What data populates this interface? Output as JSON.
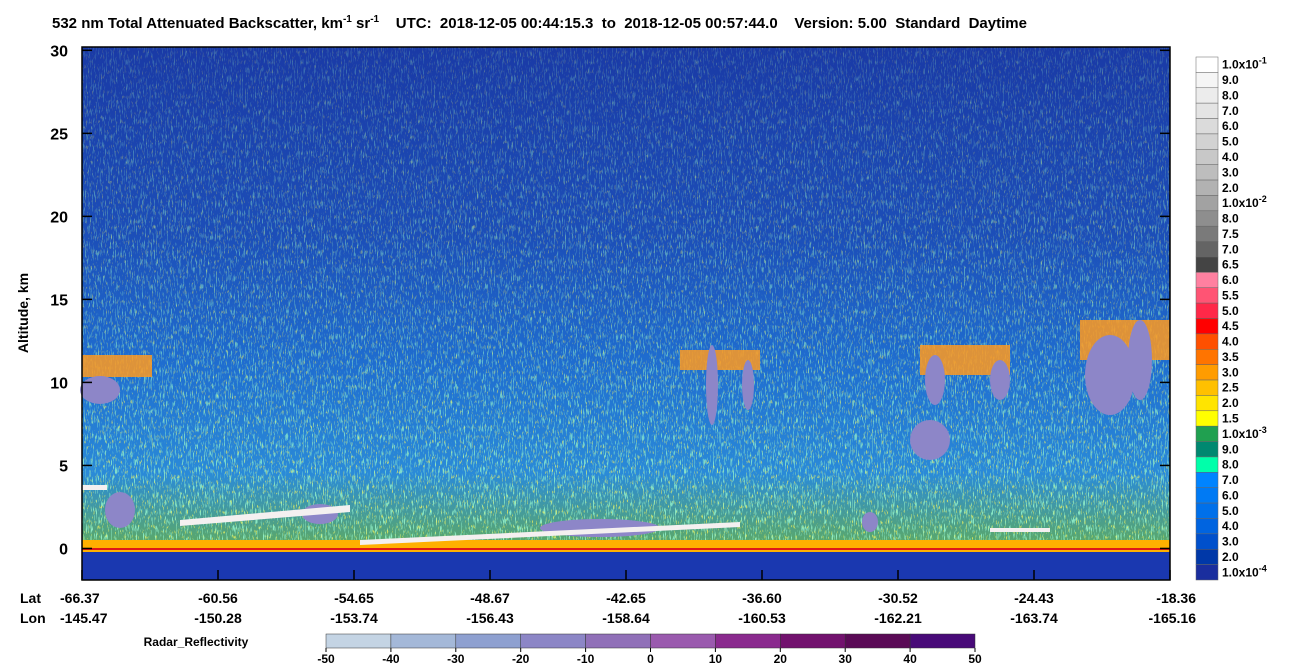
{
  "chart_data": {
    "type": "curtain",
    "title_parts": [
      "532 nm Total Attenuated Backscatter, km",
      "-1",
      " sr",
      "-1",
      "    UTC:  2018-12-05 00:44:15.3  to  2018-12-05 00:57:44.0    Version: 5.00  Standard  Daytime"
    ],
    "ylabel": "Altitude, km",
    "ylim": [
      -1.9,
      30.2
    ],
    "yticks": [
      0,
      5,
      10,
      15,
      20,
      25,
      30
    ],
    "x_row_labels": [
      "Lat",
      "Lon"
    ],
    "lat": [
      "-66.37",
      "-60.56",
      "-54.65",
      "-48.67",
      "-42.65",
      "-36.60",
      "-30.52",
      "-24.43",
      "-18.36"
    ],
    "lon": [
      "-145.47",
      "-150.28",
      "-153.74",
      "-156.43",
      "-158.64",
      "-160.53",
      "-162.21",
      "-163.74",
      "-165.16"
    ],
    "colorbar": [
      {
        "value": 0.1,
        "label": "1.0x10",
        "sup": "-1",
        "color": "#ffffff"
      },
      {
        "value": 0.09,
        "label": "9.0",
        "color": "#f5f5f5"
      },
      {
        "value": 0.08,
        "label": "8.0",
        "color": "#ececec"
      },
      {
        "value": 0.07,
        "label": "7.0",
        "color": "#e4e4e4"
      },
      {
        "value": 0.06,
        "label": "6.0",
        "color": "#dbdbdb"
      },
      {
        "value": 0.05,
        "label": "5.0",
        "color": "#d2d2d2"
      },
      {
        "value": 0.04,
        "label": "4.0",
        "color": "#c8c8c8"
      },
      {
        "value": 0.03,
        "label": "3.0",
        "color": "#bdbdbd"
      },
      {
        "value": 0.02,
        "label": "2.0",
        "color": "#b2b2b2"
      },
      {
        "value": 0.01,
        "label": "1.0x10",
        "sup": "-2",
        "color": "#a2a2a2"
      },
      {
        "value": 0.008,
        "label": "8.0",
        "color": "#8e8e8e"
      },
      {
        "value": 0.0075,
        "label": "7.5",
        "color": "#7a7a7a"
      },
      {
        "value": 0.007,
        "label": "7.0",
        "color": "#646464"
      },
      {
        "value": 0.0065,
        "label": "6.5",
        "color": "#444444"
      },
      {
        "value": 0.006,
        "label": "6.0",
        "color": "#ff80a0"
      },
      {
        "value": 0.0055,
        "label": "5.5",
        "color": "#ff5474"
      },
      {
        "value": 0.005,
        "label": "5.0",
        "color": "#ff2848"
      },
      {
        "value": 0.0045,
        "label": "4.5",
        "color": "#ff0000"
      },
      {
        "value": 0.004,
        "label": "4.0",
        "color": "#ff5000"
      },
      {
        "value": 0.0035,
        "label": "3.5",
        "color": "#ff7400"
      },
      {
        "value": 0.003,
        "label": "3.0",
        "color": "#ff9c00"
      },
      {
        "value": 0.0025,
        "label": "2.5",
        "color": "#ffc000"
      },
      {
        "value": 0.002,
        "label": "2.0",
        "color": "#ffe400"
      },
      {
        "value": 0.0015,
        "label": "1.5",
        "color": "#ffff00"
      },
      {
        "value": 0.001,
        "label": "1.0x10",
        "sup": "-3",
        "color": "#20a050"
      },
      {
        "value": 0.0009,
        "label": "9.0",
        "color": "#008870"
      },
      {
        "value": 0.0008,
        "label": "8.0",
        "color": "#00ffaa"
      },
      {
        "value": 0.0007,
        "label": "7.0",
        "color": "#0084ff"
      },
      {
        "value": 0.0006,
        "label": "6.0",
        "color": "#007af4"
      },
      {
        "value": 0.0005,
        "label": "5.0",
        "color": "#0070ea"
      },
      {
        "value": 0.0004,
        "label": "4.0",
        "color": "#0064e0"
      },
      {
        "value": 0.0003,
        "label": "3.0",
        "color": "#0050cc"
      },
      {
        "value": 0.0002,
        "label": "2.0",
        "color": "#0038a8"
      },
      {
        "value": 0.0001,
        "label": "1.0x10",
        "sup": "-4",
        "color": "#1a2e9e"
      }
    ],
    "radar_title": "Radar_Reflectivity",
    "radar_ticks": [
      -50,
      -40,
      -30,
      -20,
      -10,
      0,
      10,
      20,
      30,
      40,
      50
    ],
    "radar_colors": [
      "#c4d4e4",
      "#a4b8d8",
      "#8ea0d0",
      "#8c86c6",
      "#9070b8",
      "#9a5aae",
      "#8a2a8e",
      "#72126e",
      "#5a0a56",
      "#480a78"
    ]
  }
}
